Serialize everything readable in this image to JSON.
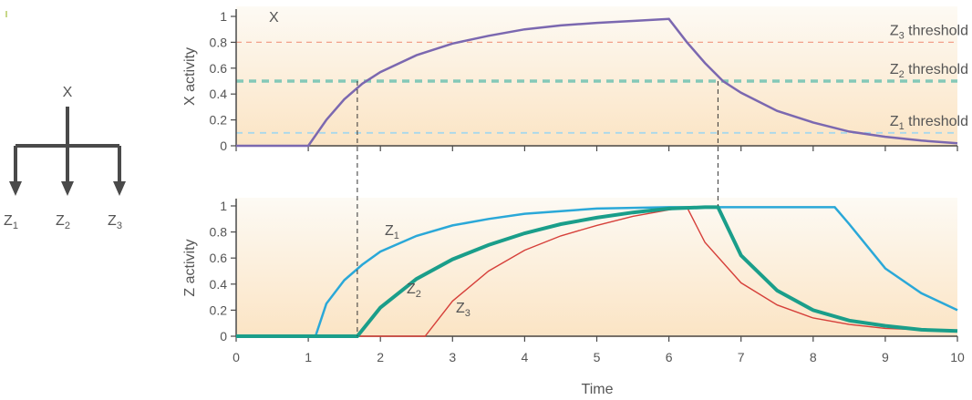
{
  "diagram": {
    "root": "X",
    "children": [
      {
        "letter": "Z",
        "sub": "1"
      },
      {
        "letter": "Z",
        "sub": "2"
      },
      {
        "letter": "Z",
        "sub": "3"
      }
    ]
  },
  "colors": {
    "x_curve": "#7b68b0",
    "z1": "#2aa8d8",
    "z2": "#1a9e8a",
    "z3": "#d6403a",
    "z3_threshold": "#f2a08a",
    "z2_threshold": "#84c8b8",
    "z1_threshold": "#a8d8ec",
    "axis": "#4a4a4a",
    "bg_gradient_top": "#fdfaf4",
    "bg_gradient_bottom": "#fbe4c4"
  },
  "chart_data": [
    {
      "type": "line",
      "ylabel": "X activity",
      "xlim": [
        0,
        10
      ],
      "ylim": [
        0,
        1
      ],
      "yticks": [
        "0",
        "0.2",
        "0.4",
        "0.6",
        "0.8",
        "1"
      ],
      "series_label": "X",
      "thresholds": [
        {
          "letter": "Z",
          "sub": "3",
          "suffix": " threshold",
          "value": 0.8
        },
        {
          "letter": "Z",
          "sub": "2",
          "suffix": " threshold",
          "value": 0.5
        },
        {
          "letter": "Z",
          "sub": "1",
          "suffix": " threshold",
          "value": 0.1
        }
      ],
      "series": [
        {
          "key": "x",
          "x": [
            0,
            1,
            1.25,
            1.5,
            1.75,
            2,
            2.5,
            3,
            3.5,
            4,
            4.5,
            5,
            5.5,
            6,
            6.25,
            6.5,
            6.75,
            7,
            7.5,
            8,
            8.5,
            9,
            9.5,
            10
          ],
          "y": [
            0,
            0,
            0.2,
            0.36,
            0.48,
            0.57,
            0.7,
            0.79,
            0.85,
            0.9,
            0.93,
            0.95,
            0.965,
            0.98,
            0.8,
            0.64,
            0.5,
            0.41,
            0.27,
            0.18,
            0.11,
            0.07,
            0.04,
            0.02
          ]
        }
      ],
      "markers": [
        1.68,
        6.68
      ]
    },
    {
      "type": "line",
      "ylabel": "Z activity",
      "xlabel": "Time",
      "xlim": [
        0,
        10
      ],
      "ylim": [
        0,
        1
      ],
      "xticks": [
        "0",
        "1",
        "2",
        "3",
        "4",
        "5",
        "6",
        "7",
        "8",
        "9",
        "10"
      ],
      "yticks": [
        "0",
        "0.2",
        "0.4",
        "0.6",
        "0.8",
        "1"
      ],
      "series": [
        {
          "key": "z1",
          "letter": "Z",
          "sub": "1",
          "x": [
            0,
            1.1,
            1.25,
            1.5,
            1.75,
            2,
            2.5,
            3,
            3.5,
            4,
            5,
            6,
            7,
            8,
            8.3,
            8.5,
            9,
            9.5,
            10
          ],
          "y": [
            0,
            0,
            0.25,
            0.43,
            0.55,
            0.65,
            0.77,
            0.85,
            0.9,
            0.94,
            0.98,
            0.99,
            0.99,
            0.99,
            0.99,
            0.86,
            0.52,
            0.33,
            0.2
          ]
        },
        {
          "key": "z2",
          "letter": "Z",
          "sub": "2",
          "x": [
            0,
            1.68,
            2,
            2.5,
            3,
            3.5,
            4,
            4.5,
            5,
            5.5,
            6,
            6.5,
            6.68,
            7,
            7.5,
            8,
            8.5,
            9,
            9.5,
            10
          ],
          "y": [
            0,
            0,
            0.22,
            0.44,
            0.59,
            0.7,
            0.79,
            0.86,
            0.91,
            0.95,
            0.98,
            0.99,
            0.99,
            0.62,
            0.35,
            0.2,
            0.12,
            0.08,
            0.05,
            0.04
          ]
        },
        {
          "key": "z3",
          "letter": "Z",
          "sub": "3",
          "x": [
            0,
            2.62,
            3,
            3.5,
            4,
            4.5,
            5,
            5.5,
            6,
            6.25,
            6.5,
            7,
            7.5,
            8,
            8.5,
            9,
            9.5,
            10
          ],
          "y": [
            0,
            0,
            0.27,
            0.5,
            0.66,
            0.77,
            0.85,
            0.92,
            0.97,
            0.99,
            0.72,
            0.41,
            0.24,
            0.14,
            0.09,
            0.06,
            0.05,
            0.04
          ]
        }
      ]
    }
  ]
}
